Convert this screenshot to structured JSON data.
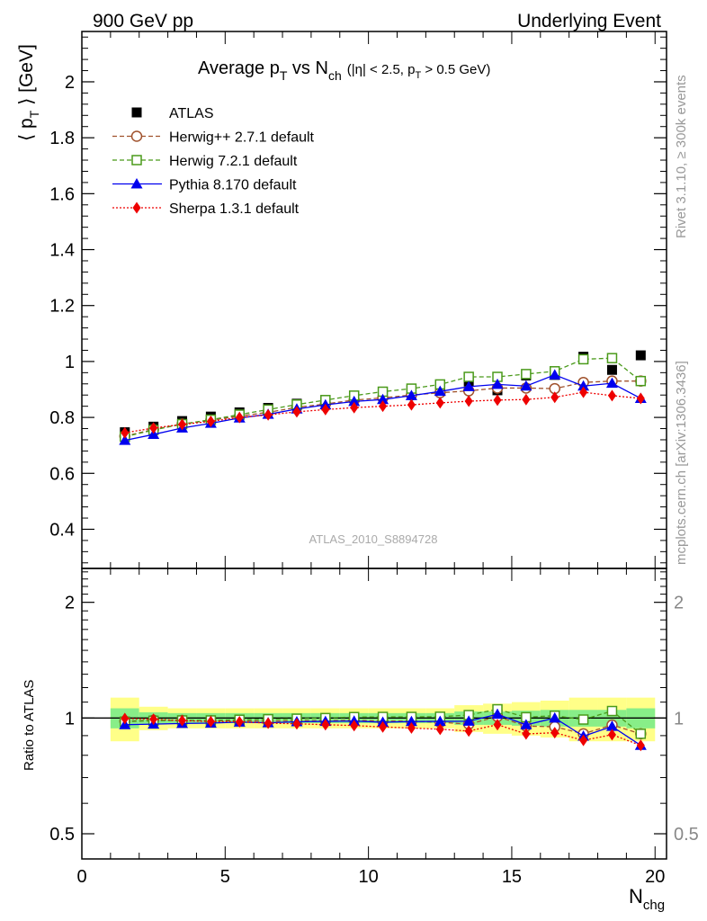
{
  "header": {
    "left": "900 GeV pp",
    "right": "Underlying Event"
  },
  "side": {
    "rivet": "Rivet 3.1.10, ≥ 300k events",
    "mcplots": "mcplots.cern.ch [arXiv:1306.3436]"
  },
  "watermark": "ATLAS_2010_S8894728",
  "title": {
    "main": "Average p",
    "sub1": "T",
    "mid": " vs N",
    "sub2": "ch",
    "cut": "(|η| < 2.5, p",
    "cut_sub": "T",
    "cut_end": " > 0.5 GeV)"
  },
  "ylabel": {
    "pre": "⟨ p",
    "sub": "T",
    "post": " ⟩ [GeV]"
  },
  "xlabel": {
    "main": "N",
    "sub": "chg"
  },
  "ratio_ylabel": "Ratio to ATLAS",
  "colors": {
    "ATLAS": "#000000",
    "Herwig++ 2.7.1 default": "#a0522d",
    "Herwig 7.2.1 default": "#4a9a1a",
    "Pythia 8.170 default": "#0000ee",
    "Sherpa 1.3.1 default": "#ee0000"
  },
  "chart_data": [
    {
      "type": "scatter",
      "panel": "main",
      "xlim": [
        0,
        20.4
      ],
      "ylim": [
        0.26,
        2.18
      ],
      "xticks": [
        0,
        5,
        10,
        15,
        20
      ],
      "yticks": [
        0.4,
        0.6,
        0.8,
        1.0,
        1.2,
        1.4,
        1.6,
        1.8,
        2.0
      ],
      "ytick_labels": [
        "0.4",
        "0.6",
        "0.8",
        "1",
        "1.2",
        "1.4",
        "1.6",
        "1.8",
        "2"
      ],
      "legend_position": "top-left",
      "x": [
        1.5,
        2.5,
        3.5,
        4.5,
        5.5,
        6.5,
        7.5,
        8.5,
        9.5,
        10.5,
        11.5,
        12.5,
        13.5,
        14.5,
        15.5,
        16.5,
        17.5,
        18.5,
        19.5
      ],
      "series": [
        {
          "name": "ATLAS",
          "marker": "square",
          "line": "none",
          "values": [
            0.747,
            0.767,
            0.787,
            0.803,
            0.818,
            0.834,
            0.849,
            0.862,
            0.873,
            0.886,
            0.897,
            0.911,
            0.928,
            0.897,
            0.95,
            0.952,
            1.017,
            0.97,
            1.022
          ]
        },
        {
          "name": "Herwig++ 2.7.1 default",
          "marker": "open-circle",
          "line": "dashed",
          "values": [
            0.733,
            0.757,
            0.776,
            0.79,
            0.805,
            0.818,
            0.836,
            0.848,
            0.862,
            0.87,
            0.88,
            0.888,
            0.895,
            0.905,
            0.905,
            0.903,
            0.925,
            0.93,
            0.93
          ]
        },
        {
          "name": "Herwig 7.2.1 default",
          "marker": "open-square",
          "line": "dashed",
          "values": [
            0.731,
            0.755,
            0.776,
            0.792,
            0.81,
            0.828,
            0.846,
            0.862,
            0.878,
            0.892,
            0.903,
            0.918,
            0.945,
            0.945,
            0.955,
            0.965,
            1.008,
            1.012,
            0.93
          ]
        },
        {
          "name": "Pythia 8.170 default",
          "marker": "filled-triangle",
          "line": "solid",
          "values": [
            0.718,
            0.739,
            0.762,
            0.779,
            0.798,
            0.811,
            0.83,
            0.845,
            0.857,
            0.864,
            0.878,
            0.893,
            0.91,
            0.918,
            0.912,
            0.952,
            0.912,
            0.922,
            0.868
          ]
        },
        {
          "name": "Sherpa 1.3.1 default",
          "marker": "filled-diamond",
          "line": "dotted",
          "values": [
            0.745,
            0.762,
            0.775,
            0.786,
            0.8,
            0.809,
            0.82,
            0.828,
            0.835,
            0.84,
            0.845,
            0.852,
            0.858,
            0.862,
            0.864,
            0.872,
            0.89,
            0.878,
            0.868
          ]
        }
      ]
    },
    {
      "type": "scatter",
      "panel": "ratio",
      "ylabel": "Ratio to ATLAS",
      "log_y": true,
      "xlim": [
        0,
        20.4
      ],
      "ylim": [
        0.43,
        2.45
      ],
      "yticks": [
        0.5,
        1,
        2
      ],
      "ytick_labels": [
        "0.5",
        "1",
        "2"
      ],
      "xticks": [
        0,
        5,
        10,
        15,
        20
      ],
      "xtick_labels": [
        "0",
        "5",
        "10",
        "15",
        "20"
      ],
      "band_x_edges": [
        1,
        2,
        3,
        4,
        5,
        6,
        7,
        8,
        9,
        10,
        11,
        12,
        13,
        14,
        15,
        16,
        17,
        18,
        19,
        20
      ],
      "band_inner_halfwidth": [
        0.06,
        0.035,
        0.03,
        0.03,
        0.03,
        0.03,
        0.03,
        0.03,
        0.03,
        0.03,
        0.03,
        0.03,
        0.04,
        0.04,
        0.045,
        0.05,
        0.05,
        0.05,
        0.06
      ],
      "band_outer_halfwidth": [
        0.13,
        0.07,
        0.06,
        0.06,
        0.06,
        0.06,
        0.06,
        0.06,
        0.06,
        0.06,
        0.06,
        0.06,
        0.08,
        0.09,
        0.1,
        0.11,
        0.13,
        0.13,
        0.13
      ],
      "x": [
        1.5,
        2.5,
        3.5,
        4.5,
        5.5,
        6.5,
        7.5,
        8.5,
        9.5,
        10.5,
        11.5,
        12.5,
        13.5,
        14.5,
        15.5,
        16.5,
        17.5,
        18.5,
        19.5
      ],
      "series": [
        {
          "name": "Herwig++ 2.7.1 default",
          "values": [
            0.981,
            0.987,
            0.986,
            0.984,
            0.984,
            0.981,
            0.985,
            0.984,
            0.987,
            0.982,
            0.981,
            0.975,
            0.964,
            1.009,
            0.953,
            0.949,
            0.91,
            0.959,
            0.91
          ]
        },
        {
          "name": "Herwig 7.2.1 default",
          "values": [
            0.979,
            0.984,
            0.986,
            0.986,
            0.99,
            0.993,
            0.996,
            1.0,
            1.006,
            1.007,
            1.007,
            1.008,
            1.018,
            1.054,
            1.005,
            1.014,
            0.991,
            1.043,
            0.91
          ]
        },
        {
          "name": "Pythia 8.170 default",
          "values": [
            0.961,
            0.964,
            0.968,
            0.97,
            0.976,
            0.972,
            0.978,
            0.98,
            0.982,
            0.975,
            0.979,
            0.98,
            0.981,
            1.023,
            0.96,
            1.0,
            0.897,
            0.951,
            0.849
          ]
        },
        {
          "name": "Sherpa 1.3.1 default",
          "values": [
            0.997,
            0.993,
            0.985,
            0.979,
            0.978,
            0.97,
            0.966,
            0.961,
            0.956,
            0.948,
            0.942,
            0.935,
            0.925,
            0.961,
            0.909,
            0.916,
            0.875,
            0.905,
            0.849
          ]
        }
      ]
    }
  ]
}
